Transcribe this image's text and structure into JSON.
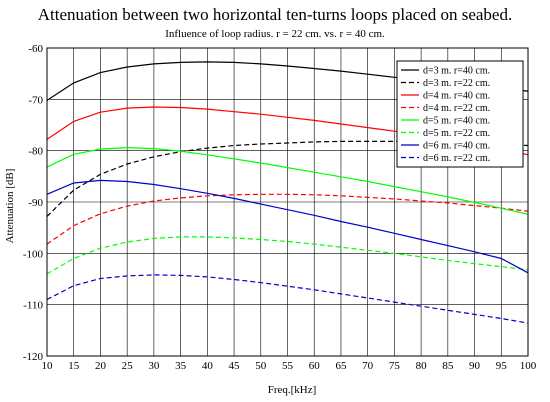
{
  "chart_data": {
    "type": "line",
    "title": "Attenuation between two horizontal ten-turns loops placed on seabed.",
    "subtitle": "Influence of loop radius. r = 22 cm. vs. r = 40 cm.",
    "xlabel": "Freq.[kHz]",
    "ylabel": "Attenuation [dB]",
    "xlim": [
      10,
      100
    ],
    "ylim": [
      -120,
      -60
    ],
    "xticks": [
      10,
      15,
      20,
      25,
      30,
      35,
      40,
      45,
      50,
      55,
      60,
      65,
      70,
      75,
      80,
      85,
      90,
      95,
      100
    ],
    "yticks": [
      -60,
      -70,
      -80,
      -90,
      -100,
      -110,
      -120
    ],
    "grid": true,
    "legend_position": "top-right",
    "x": [
      10,
      15,
      20,
      25,
      30,
      35,
      40,
      45,
      50,
      55,
      60,
      65,
      70,
      75,
      80,
      85,
      90,
      95,
      100
    ],
    "series": [
      {
        "name": "d=3 m. r=40 cm.",
        "color": "#000000",
        "dash": "solid",
        "values": [
          -70.2,
          -66.8,
          -64.8,
          -63.7,
          -63.1,
          -62.8,
          -62.7,
          -62.8,
          -63.1,
          -63.5,
          -64.0,
          -64.5,
          -65.1,
          -65.7,
          -66.3,
          -66.9,
          -67.4,
          -67.9,
          -68.4
        ]
      },
      {
        "name": "d=3 m. r=22 cm.",
        "color": "#000000",
        "dash": "dashed",
        "values": [
          -92.8,
          -87.7,
          -84.6,
          -82.6,
          -81.2,
          -80.2,
          -79.5,
          -79.0,
          -78.7,
          -78.5,
          -78.3,
          -78.2,
          -78.2,
          -78.2,
          -78.3,
          -78.4,
          -78.6,
          -78.8,
          -79.0
        ]
      },
      {
        "name": "d=4 m. r=40 cm.",
        "color": "#ff0000",
        "dash": "solid",
        "values": [
          -77.8,
          -74.3,
          -72.5,
          -71.7,
          -71.5,
          -71.6,
          -71.9,
          -72.4,
          -72.9,
          -73.5,
          -74.1,
          -74.8,
          -75.5,
          -76.2,
          -76.9,
          -77.6,
          -78.5,
          -79.5,
          -80.8
        ]
      },
      {
        "name": "d=4 m. r=22 cm.",
        "color": "#ff0000",
        "dash": "dashed",
        "values": [
          -98.2,
          -94.6,
          -92.3,
          -90.8,
          -89.8,
          -89.2,
          -88.8,
          -88.6,
          -88.5,
          -88.5,
          -88.6,
          -88.8,
          -89.1,
          -89.4,
          -89.8,
          -90.2,
          -90.7,
          -91.2,
          -91.8
        ]
      },
      {
        "name": "d=5 m. r=40 cm.",
        "color": "#00ff00",
        "dash": "solid",
        "values": [
          -83.2,
          -80.7,
          -79.7,
          -79.4,
          -79.6,
          -80.1,
          -80.8,
          -81.6,
          -82.4,
          -83.3,
          -84.2,
          -85.1,
          -86.0,
          -87.0,
          -88.0,
          -89.0,
          -90.1,
          -91.2,
          -92.4
        ]
      },
      {
        "name": "d=5 m. r=22 cm.",
        "color": "#00ff00",
        "dash": "dashed",
        "values": [
          -104.0,
          -101.0,
          -99.0,
          -97.8,
          -97.1,
          -96.8,
          -96.8,
          -97.0,
          -97.3,
          -97.7,
          -98.2,
          -98.8,
          -99.4,
          -100.0,
          -100.7,
          -101.4,
          -102.0,
          -102.6,
          -103.2
        ]
      },
      {
        "name": "d=6 m. r=40 cm.",
        "color": "#0000cc",
        "dash": "solid",
        "values": [
          -88.5,
          -86.3,
          -85.8,
          -86.0,
          -86.6,
          -87.4,
          -88.3,
          -89.3,
          -90.4,
          -91.5,
          -92.6,
          -93.8,
          -94.9,
          -96.1,
          -97.3,
          -98.5,
          -99.7,
          -101.0,
          -103.8
        ]
      },
      {
        "name": "d=6 m. r=22 cm.",
        "color": "#0000cc",
        "dash": "dashed",
        "values": [
          -109.0,
          -106.3,
          -104.9,
          -104.4,
          -104.2,
          -104.3,
          -104.6,
          -105.1,
          -105.7,
          -106.4,
          -107.1,
          -107.9,
          -108.7,
          -109.5,
          -110.3,
          -111.1,
          -111.9,
          -112.7,
          -113.6
        ]
      }
    ]
  }
}
